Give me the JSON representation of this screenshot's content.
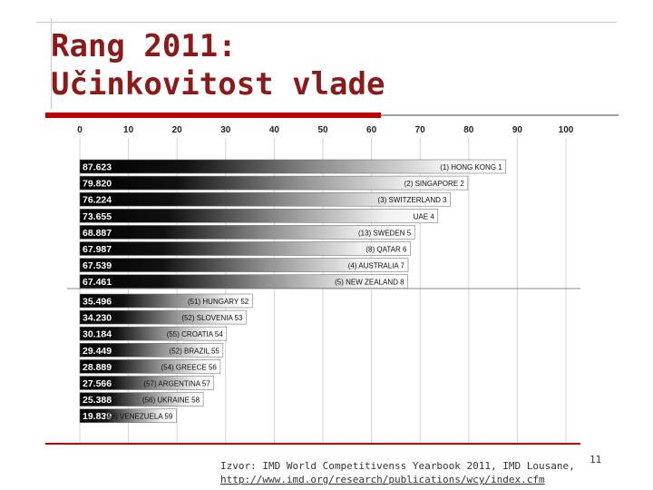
{
  "slide": {
    "title_line1": "Rang 2011:",
    "title_line2": "Učinkovitost vlade",
    "source_line1": "Izvor: IMD World Competitivenss Yearbook 2011, IMD Lousane,",
    "source_link": "http://www.imd.org/research/publications/wcy/index.cfm",
    "page_number": "11"
  },
  "colors": {
    "title": "#8b1a1a",
    "accent": "#c00000",
    "bar_dark": "#000000",
    "bar_light": "#ffffff"
  },
  "chart_data": {
    "type": "bar",
    "orientation": "horizontal",
    "xlim": [
      0,
      100
    ],
    "x_ticks": [
      "0",
      "10",
      "20",
      "30",
      "40",
      "50",
      "60",
      "70",
      "80",
      "90",
      "100"
    ],
    "grid": true,
    "groups": [
      {
        "bars": [
          {
            "value": 87.623,
            "value_label": "87.623",
            "label": "(1) HONG KONG 1"
          },
          {
            "value": 79.82,
            "value_label": "79.820",
            "label": "(2) SINGAPORE 2"
          },
          {
            "value": 76.224,
            "value_label": "76.224",
            "label": "(3) SWITZERLAND 3"
          },
          {
            "value": 73.655,
            "value_label": "73.655",
            "label": "UAE 4"
          },
          {
            "value": 68.887,
            "value_label": "68.887",
            "label": "(13) SWEDEN 5"
          },
          {
            "value": 67.987,
            "value_label": "67.987",
            "label": "(8) QATAR 6"
          },
          {
            "value": 67.539,
            "value_label": "67.539",
            "label": "(4) AUSTRALIA 7"
          },
          {
            "value": 67.461,
            "value_label": "67.461",
            "label": "(5) NEW ZEALAND 8"
          }
        ]
      },
      {
        "bars": [
          {
            "value": 35.496,
            "value_label": "35.496",
            "label": "(51) HUNGARY 52"
          },
          {
            "value": 34.23,
            "value_label": "34.230",
            "label": "(52) SLOVENIA 53"
          },
          {
            "value": 30.184,
            "value_label": "30.184",
            "label": "(55) CROATIA 54"
          },
          {
            "value": 29.449,
            "value_label": "29.449",
            "label": "(52) BRAZIL 55"
          },
          {
            "value": 28.889,
            "value_label": "28.889",
            "label": "(54) GREECE 56"
          },
          {
            "value": 27.566,
            "value_label": "27.566",
            "label": "(57) ARGENTINA 57"
          },
          {
            "value": 25.388,
            "value_label": "25.388",
            "label": "(56) UKRAINE 58"
          },
          {
            "value": 19.839,
            "value_label": "19.839",
            "label": "(58) VENEZUELA 59"
          }
        ]
      }
    ]
  }
}
